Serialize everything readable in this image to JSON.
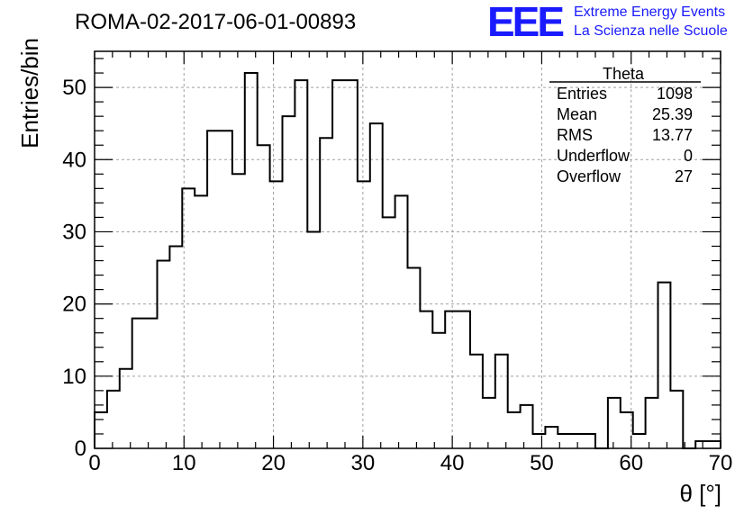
{
  "header": {
    "run_title": "ROMA-02-2017-06-01-00893",
    "logo_text": "EEE",
    "brand_line1": "Extreme Energy Events",
    "brand_line2": "La Scienza nelle Scuole"
  },
  "colors": {
    "brand": "#1a1aff",
    "line": "#000000",
    "grid": "#a0a0a0"
  },
  "stats_box": {
    "title": "Theta",
    "rows": [
      {
        "label": "Entries",
        "value": "1098"
      },
      {
        "label": "Mean",
        "value": "25.39"
      },
      {
        "label": "RMS",
        "value": "13.77"
      },
      {
        "label": "Underflow",
        "value": "0"
      },
      {
        "label": "Overflow",
        "value": "27"
      }
    ]
  },
  "chart_data": {
    "type": "bar",
    "style": "step-histogram",
    "xlabel": "θ [°]",
    "ylabel": "Entries/bin",
    "xlim": [
      0,
      70
    ],
    "ylim": [
      0,
      55
    ],
    "x_ticks": [
      0,
      10,
      20,
      30,
      40,
      50,
      60,
      70
    ],
    "y_ticks": [
      0,
      10,
      20,
      30,
      40,
      50
    ],
    "grid": true,
    "bin_width": 1.4,
    "values": [
      5,
      8,
      11,
      18,
      18,
      26,
      28,
      36,
      35,
      44,
      44,
      38,
      52,
      42,
      37,
      46,
      51,
      30,
      43,
      51,
      51,
      37,
      45,
      32,
      35,
      25,
      19,
      16,
      19,
      19,
      13,
      7,
      13,
      5,
      6,
      2,
      3,
      2,
      2,
      2,
      0,
      7,
      5,
      2,
      7,
      23,
      8,
      0,
      1,
      1
    ]
  }
}
